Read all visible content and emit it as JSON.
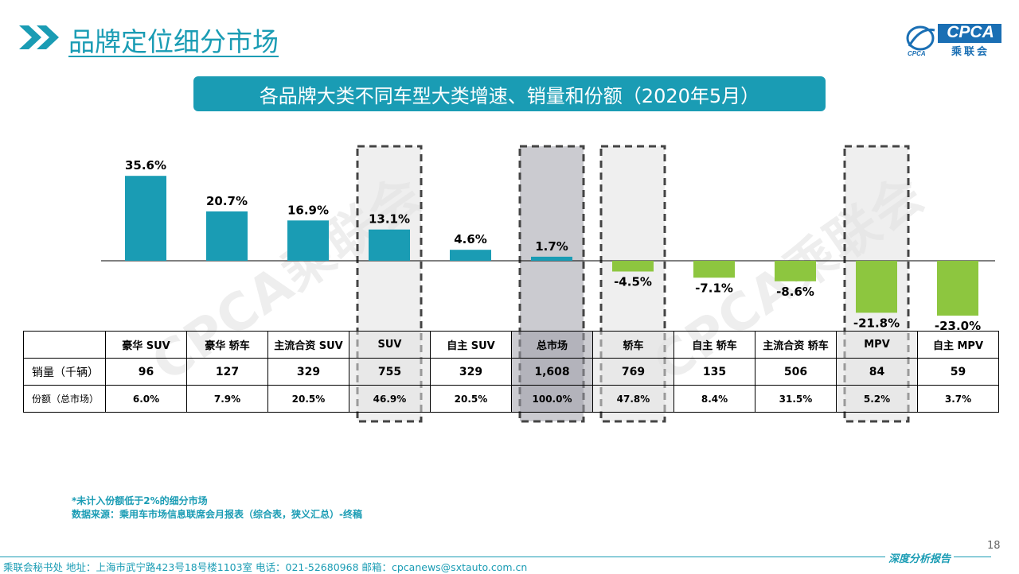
{
  "header": {
    "title": "品牌定位细分市场",
    "logo_text": "CPCA",
    "logo_subtext": "乘联会"
  },
  "subtitle": "各品牌大类不同车型大类增速、销量和份额（2020年5月）",
  "watermark": "CPCA乘联会",
  "colors": {
    "accent": "#1a9cb4",
    "positive_bar": "#1a9cb4",
    "negative_bar": "#8dc63f"
  },
  "chart_data": {
    "type": "bar",
    "categories": [
      "豪华 SUV",
      "豪华 轿车",
      "主流合资 SUV",
      "SUV",
      "自主 SUV",
      "总市场",
      "轿车",
      "自主 轿车",
      "主流合资 轿车",
      "MPV",
      "自主 MPV"
    ],
    "values": [
      35.6,
      20.7,
      16.9,
      13.1,
      4.6,
      1.7,
      -4.5,
      -7.1,
      -8.6,
      -21.8,
      -23.0
    ],
    "labels": [
      "35.6%",
      "20.7%",
      "16.9%",
      "13.1%",
      "4.6%",
      "1.7%",
      "-4.5%",
      "-7.1%",
      "-8.6%",
      "-21.8%",
      "-23.0%"
    ],
    "highlighted": [
      "SUV",
      "总市场",
      "轿车",
      "MPV"
    ],
    "title": "",
    "xlabel": "",
    "ylabel": "",
    "grid": false
  },
  "table": {
    "row_labels": [
      "销量（千辆）",
      "份额（总市场）"
    ],
    "headers": [
      "豪华 SUV",
      "豪华 轿车",
      "主流合资 SUV",
      "SUV",
      "自主 SUV",
      "总市场",
      "轿车",
      "自主 轿车",
      "主流合资 轿车",
      "MPV",
      "自主 MPV"
    ],
    "sales": [
      "96",
      "127",
      "329",
      "755",
      "329",
      "1,608",
      "769",
      "135",
      "506",
      "84",
      "59"
    ],
    "share": [
      "6.0%",
      "7.9%",
      "20.5%",
      "46.9%",
      "20.5%",
      "100.0%",
      "47.8%",
      "8.4%",
      "31.5%",
      "5.2%",
      "3.7%"
    ]
  },
  "notes": {
    "line1": "*未计入份额低于2%的细分市场",
    "line2": "数据来源：乘用车市场信息联席会月报表（综合表，狭义汇总）-终稿"
  },
  "page_number": "18",
  "footer": {
    "left": "乘联会秘书处   地址：上海市武宁路423号18号楼1103室  电话：021-52680968   邮箱：cpcanews@sxtauto.com.cn",
    "right": "深度分析报告"
  }
}
